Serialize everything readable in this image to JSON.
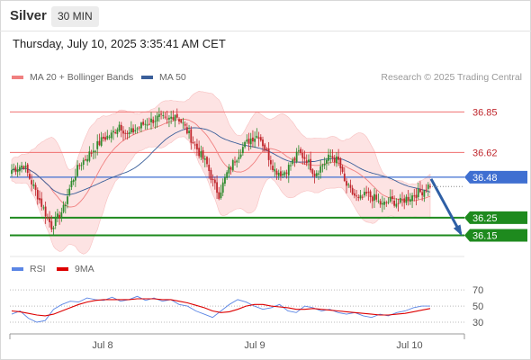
{
  "header": {
    "instrument": "Silver",
    "timeframe": "30 MIN",
    "datetime": "Thursday, July 10, 2025 3:35:41 AM CET"
  },
  "legend": {
    "ma20": "MA 20 + Bollinger Bands",
    "ma50": "MA 50",
    "credit": "Research © 2025 Trading Central",
    "rsi": "RSI",
    "ma9": "9MA"
  },
  "colors": {
    "ma20": "#f08080",
    "ma50": "#3a5f9a",
    "band": "#fde0e0",
    "bull": "#2e8b2e",
    "bear": "#c0272d",
    "resistance": "#f07070",
    "pivot": "#3f6fd1",
    "support": "#1e8a1e",
    "rsi": "#5b86e5",
    "rsi_ma": "#dd0000",
    "arrow": "#2e5fa5"
  },
  "chart_data": [
    {
      "type": "candlestick",
      "x_labels": [
        "Jul 8",
        "Jul 9",
        "Jul 10"
      ],
      "y_range": [
        36.03,
        37.0
      ],
      "levels": [
        {
          "value": 36.85,
          "label": "36.85",
          "kind": "resistance"
        },
        {
          "value": 36.62,
          "label": "36.62",
          "kind": "resistance"
        },
        {
          "value": 36.48,
          "label": "36.48",
          "kind": "pivot"
        },
        {
          "value": 36.25,
          "label": "36.25",
          "kind": "support"
        },
        {
          "value": 36.15,
          "label": "36.15",
          "kind": "support"
        }
      ],
      "forecast_arrow": {
        "from": 36.47,
        "to": 36.15
      },
      "close_path": [
        [
          0,
          36.52
        ],
        [
          6,
          36.55
        ],
        [
          10,
          36.45
        ],
        [
          16,
          36.3
        ],
        [
          20,
          36.2
        ],
        [
          26,
          36.3
        ],
        [
          30,
          36.45
        ],
        [
          34,
          36.55
        ],
        [
          38,
          36.6
        ],
        [
          42,
          36.65
        ],
        [
          46,
          36.7
        ],
        [
          50,
          36.72
        ],
        [
          54,
          36.78
        ],
        [
          58,
          36.72
        ],
        [
          62,
          36.75
        ],
        [
          66,
          36.78
        ],
        [
          70,
          36.8
        ],
        [
          74,
          36.82
        ],
        [
          78,
          36.8
        ],
        [
          82,
          36.84
        ],
        [
          86,
          36.78
        ],
        [
          90,
          36.7
        ],
        [
          94,
          36.62
        ],
        [
          98,
          36.55
        ],
        [
          101,
          36.45
        ],
        [
          104,
          36.38
        ],
        [
          108,
          36.5
        ],
        [
          112,
          36.58
        ],
        [
          116,
          36.65
        ],
        [
          120,
          36.7
        ],
        [
          124,
          36.72
        ],
        [
          128,
          36.62
        ],
        [
          132,
          36.52
        ],
        [
          136,
          36.5
        ],
        [
          140,
          36.55
        ],
        [
          144,
          36.62
        ],
        [
          148,
          36.58
        ],
        [
          152,
          36.5
        ],
        [
          156,
          36.55
        ],
        [
          160,
          36.6
        ],
        [
          164,
          36.57
        ],
        [
          167,
          36.45
        ],
        [
          170,
          36.4
        ],
        [
          174,
          36.35
        ],
        [
          178,
          36.38
        ],
        [
          182,
          36.36
        ],
        [
          186,
          36.32
        ],
        [
          190,
          36.35
        ],
        [
          194,
          36.33
        ],
        [
          198,
          36.36
        ],
        [
          202,
          36.38
        ],
        [
          206,
          36.4
        ],
        [
          210,
          36.44
        ]
      ]
    },
    {
      "type": "line",
      "title": "RSI",
      "y_ticks": [
        70,
        50,
        30
      ],
      "ylim": [
        20,
        78
      ],
      "series": [
        {
          "name": "RSI",
          "values": [
            40,
            44,
            35,
            30,
            32,
            46,
            52,
            56,
            55,
            60,
            58,
            57,
            61,
            56,
            58,
            62,
            57,
            60,
            56,
            58,
            52,
            50,
            44,
            40,
            36,
            44,
            52,
            58,
            55,
            50,
            46,
            48,
            52,
            44,
            42,
            50,
            48,
            44,
            46,
            42,
            40,
            42,
            38,
            36,
            40,
            38,
            42,
            44,
            48,
            50,
            50
          ]
        },
        {
          "name": "9MA",
          "values": [
            44,
            43,
            41,
            39,
            38,
            40,
            44,
            48,
            52,
            55,
            57,
            58,
            58,
            58,
            58,
            59,
            59,
            59,
            58,
            58,
            56,
            54,
            51,
            48,
            44,
            42,
            43,
            46,
            50,
            52,
            52,
            50,
            49,
            48,
            46,
            46,
            47,
            46,
            45,
            44,
            43,
            42,
            41,
            40,
            39,
            39,
            40,
            41,
            43,
            45,
            47
          ]
        }
      ]
    }
  ]
}
